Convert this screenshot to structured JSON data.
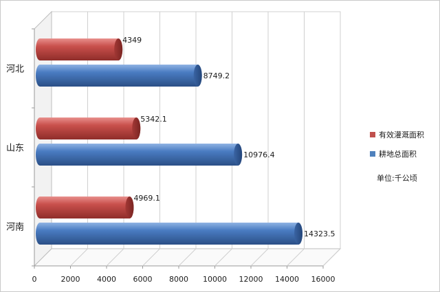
{
  "chart_data": {
    "type": "bar",
    "orientation": "horizontal",
    "categories": [
      "河北",
      "山东",
      "河南"
    ],
    "series": [
      {
        "name": "有效灌溉面积",
        "values": [
          4349,
          5342.1,
          4969.1
        ],
        "color": "#c0504d"
      },
      {
        "name": "耕地总面积",
        "values": [
          8749.2,
          10976.4,
          14323.5
        ],
        "color": "#4f81bd"
      }
    ],
    "data_labels": [
      [
        "4349",
        "5342.1",
        "4969.1"
      ],
      [
        "8749.2",
        "10976.4",
        "14323.5"
      ]
    ],
    "xticks": [
      "0",
      "2000",
      "4000",
      "6000",
      "8000",
      "10000",
      "12000",
      "14000",
      "16000"
    ],
    "xlim": [
      0,
      16000
    ],
    "grid": true,
    "legend_position": "right",
    "unit_note": "单位:千公顷"
  }
}
